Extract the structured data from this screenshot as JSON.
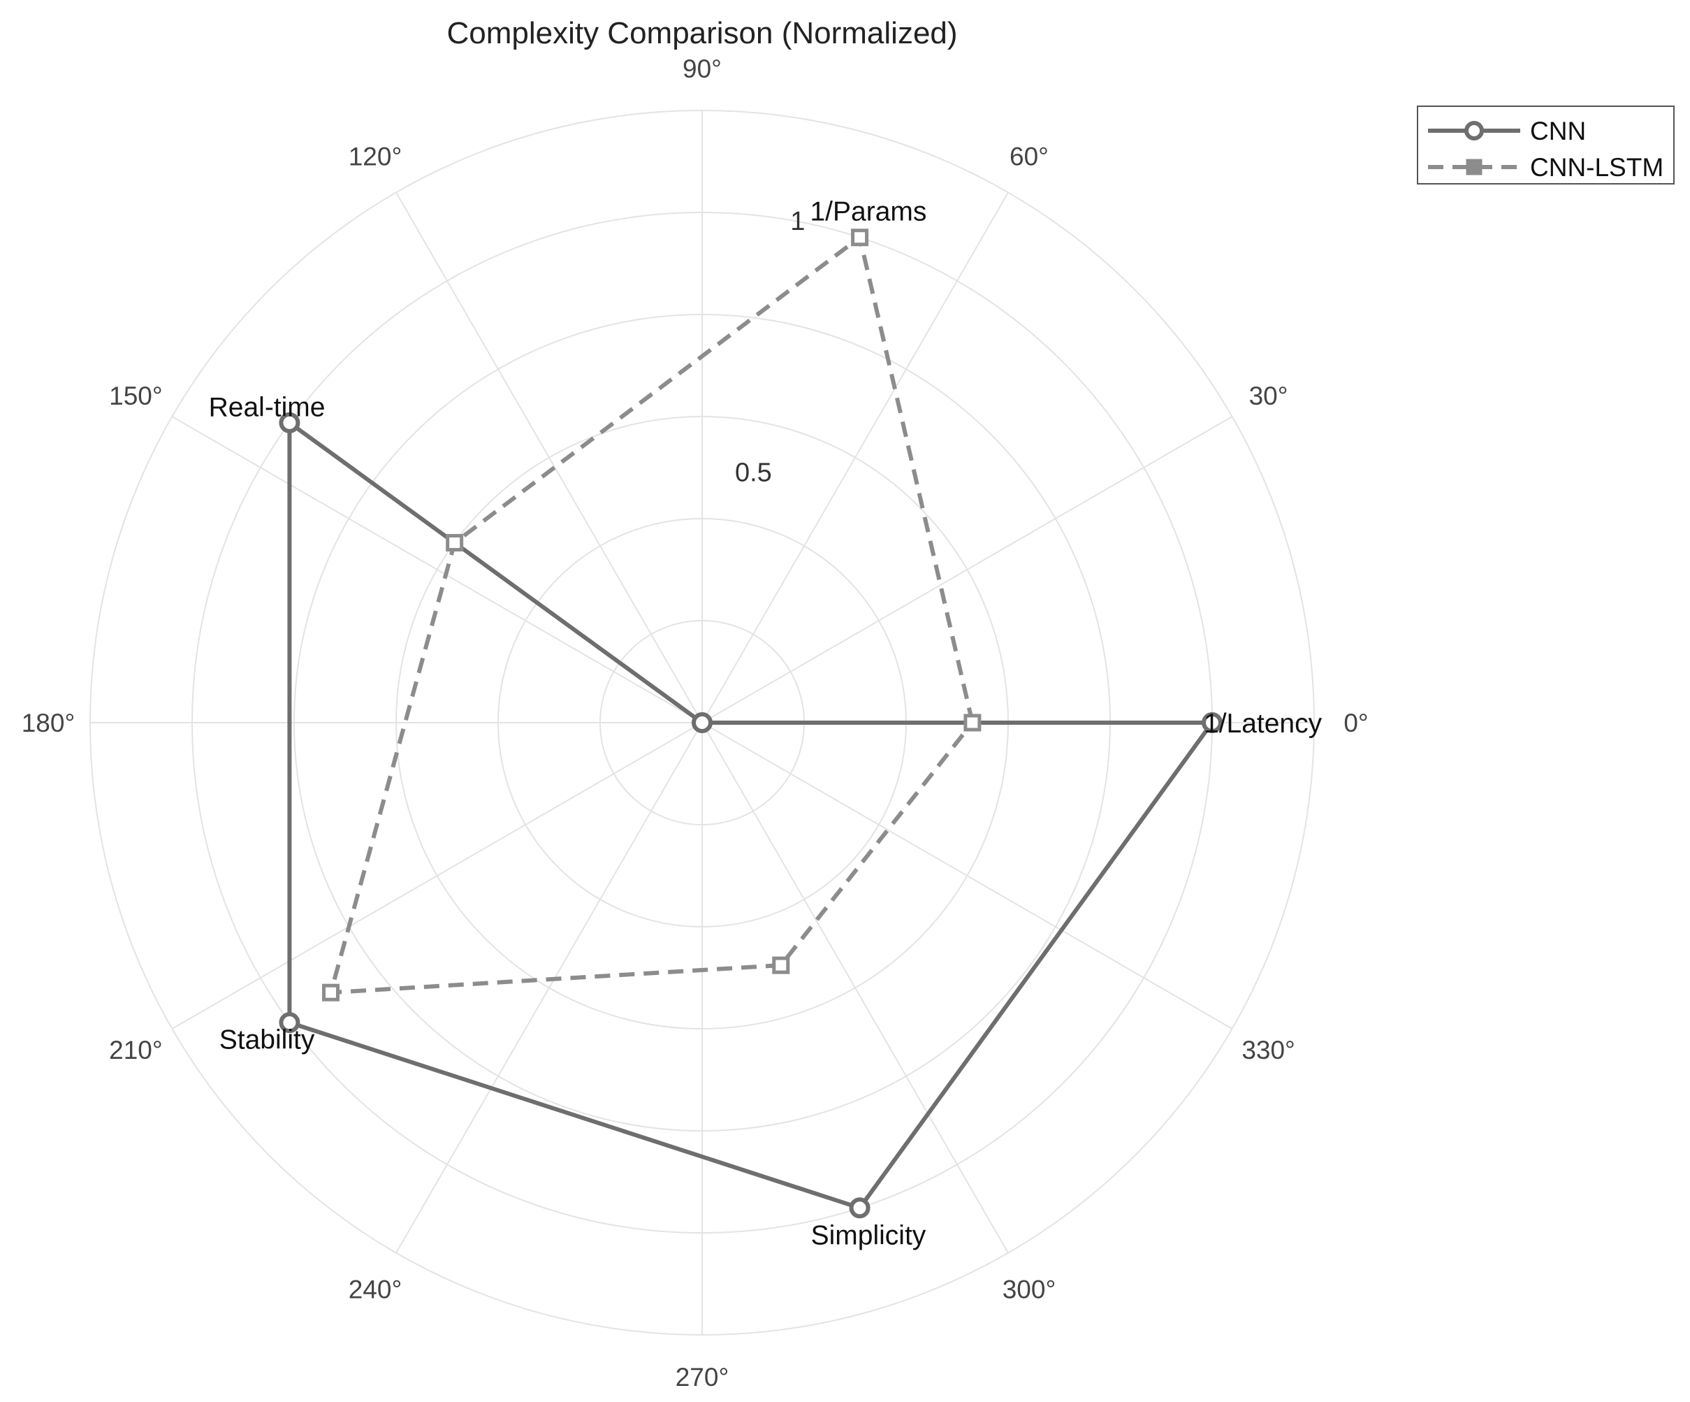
{
  "chart_data": {
    "type": "radar",
    "title": "Complexity Comparison (Normalized)",
    "categories": [
      "1/Latency",
      "1/Params",
      "Real-time",
      "Stability",
      "Simplicity"
    ],
    "category_angles_deg": [
      0,
      72,
      144,
      216,
      288
    ],
    "radial_range": [
      0,
      1.2
    ],
    "radial_ticks": [
      0.5,
      1
    ],
    "radial_tick_labels": [
      "0.5",
      "1"
    ],
    "angle_ticks_deg": [
      0,
      30,
      60,
      90,
      120,
      150,
      180,
      210,
      240,
      270,
      300,
      330
    ],
    "angle_tick_labels": [
      "0°",
      "30°",
      "60°",
      "90°",
      "120°",
      "150°",
      "180°",
      "210°",
      "240°",
      "270°",
      "300°",
      "330°"
    ],
    "grid": true,
    "legend_position": "top-right",
    "series": [
      {
        "name": "CNN",
        "line_style": "solid",
        "marker": "circle",
        "color": "#6e6e6e",
        "values": [
          1.0,
          0.0,
          1.0,
          1.0,
          1.0
        ]
      },
      {
        "name": "CNN-LSTM",
        "line_style": "dashed",
        "marker": "square",
        "color": "#8c8c8c",
        "values": [
          0.53,
          1.0,
          0.6,
          0.9,
          0.5
        ]
      }
    ]
  }
}
